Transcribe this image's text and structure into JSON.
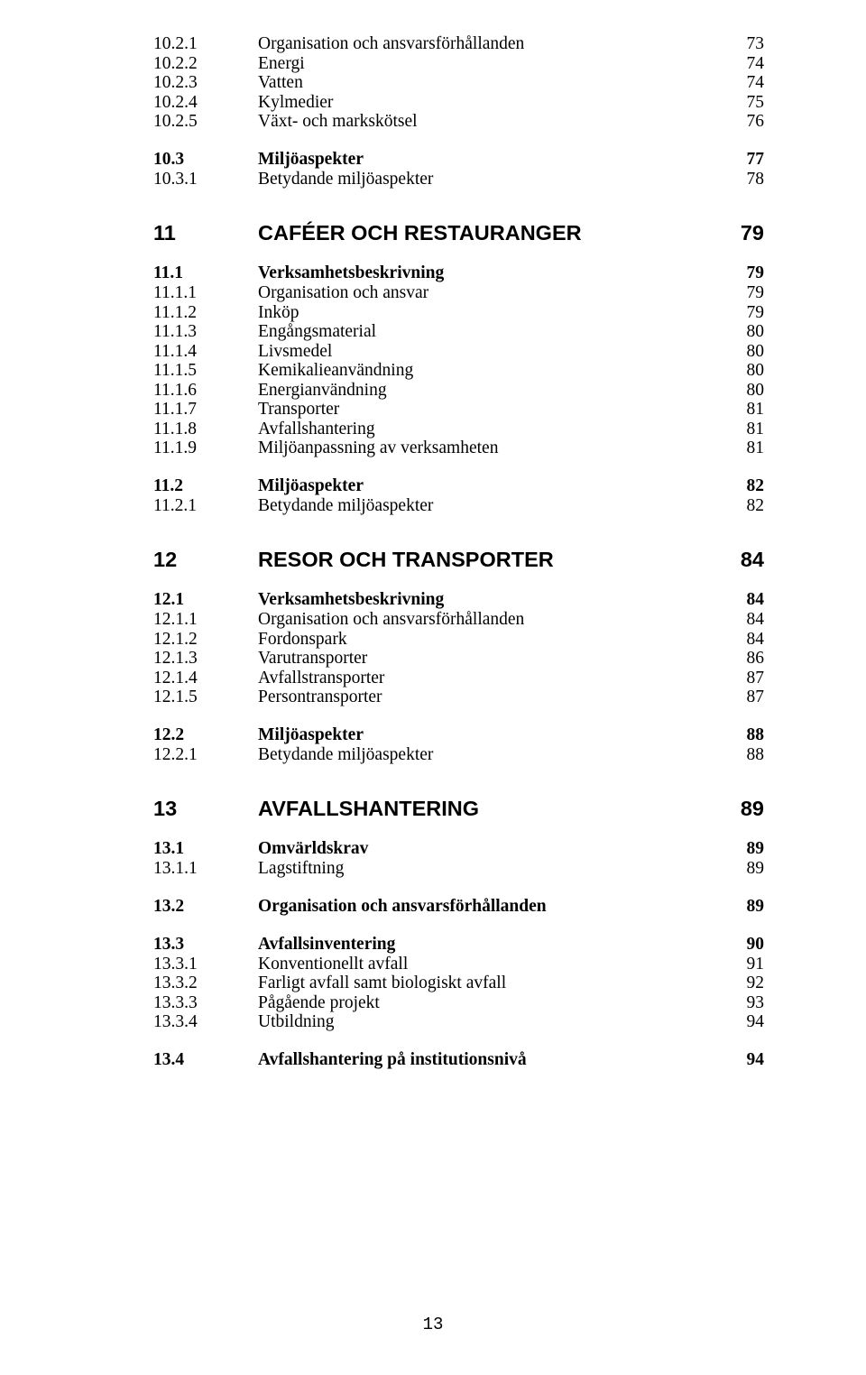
{
  "footer_page": "13",
  "items": [
    {
      "cls": "toc-entry",
      "num": "10.2.1",
      "label": "Organisation och ansvarsförhållanden",
      "pg": "73"
    },
    {
      "cls": "toc-entry",
      "num": "10.2.2",
      "label": "Energi",
      "pg": "74"
    },
    {
      "cls": "toc-entry",
      "num": "10.2.3",
      "label": "Vatten",
      "pg": "74"
    },
    {
      "cls": "toc-entry",
      "num": "10.2.4",
      "label": "Kylmedier",
      "pg": "75"
    },
    {
      "cls": "toc-entry",
      "num": "10.2.5",
      "label": "Växt- och markskötsel",
      "pg": "76"
    },
    {
      "cls": "gap-sm"
    },
    {
      "cls": "heading-2",
      "num": "10.3",
      "label": "Miljöaspekter",
      "pg": "77"
    },
    {
      "cls": "toc-entry",
      "num": "10.3.1",
      "label": "Betydande miljöaspekter",
      "pg": "78"
    },
    {
      "cls": "gap-lg"
    },
    {
      "cls": "heading-1",
      "num": "11",
      "label": "CAFÉER OCH RESTAURANGER",
      "pg": "79"
    },
    {
      "cls": "gap-sm"
    },
    {
      "cls": "heading-2",
      "num": "11.1",
      "label": "Verksamhetsbeskrivning",
      "pg": "79"
    },
    {
      "cls": "toc-entry",
      "num": "11.1.1",
      "label": "Organisation och ansvar",
      "pg": "79"
    },
    {
      "cls": "toc-entry",
      "num": "11.1.2",
      "label": "Inköp",
      "pg": "79"
    },
    {
      "cls": "toc-entry",
      "num": "11.1.3",
      "label": "Engångsmaterial",
      "pg": "80"
    },
    {
      "cls": "toc-entry",
      "num": "11.1.4",
      "label": "Livsmedel",
      "pg": "80"
    },
    {
      "cls": "toc-entry",
      "num": "11.1.5",
      "label": "Kemikalieanvändning",
      "pg": "80"
    },
    {
      "cls": "toc-entry",
      "num": "11.1.6",
      "label": "Energianvändning",
      "pg": "80"
    },
    {
      "cls": "toc-entry",
      "num": "11.1.7",
      "label": "Transporter",
      "pg": "81"
    },
    {
      "cls": "toc-entry",
      "num": "11.1.8",
      "label": "Avfallshantering",
      "pg": "81"
    },
    {
      "cls": "toc-entry",
      "num": "11.1.9",
      "label": "Miljöanpassning av verksamheten",
      "pg": "81"
    },
    {
      "cls": "gap-sm"
    },
    {
      "cls": "heading-2",
      "num": "11.2",
      "label": "Miljöaspekter",
      "pg": "82"
    },
    {
      "cls": "toc-entry",
      "num": "11.2.1",
      "label": "Betydande miljöaspekter",
      "pg": "82"
    },
    {
      "cls": "gap-lg"
    },
    {
      "cls": "heading-1",
      "num": "12",
      "label": "RESOR OCH TRANSPORTER",
      "pg": "84"
    },
    {
      "cls": "gap-sm"
    },
    {
      "cls": "heading-2",
      "num": "12.1",
      "label": "Verksamhetsbeskrivning",
      "pg": "84"
    },
    {
      "cls": "toc-entry",
      "num": "12.1.1",
      "label": "Organisation och ansvarsförhållanden",
      "pg": "84"
    },
    {
      "cls": "toc-entry",
      "num": "12.1.2",
      "label": "Fordonspark",
      "pg": "84"
    },
    {
      "cls": "toc-entry",
      "num": "12.1.3",
      "label": "Varutransporter",
      "pg": "86"
    },
    {
      "cls": "toc-entry",
      "num": "12.1.4",
      "label": "Avfallstransporter",
      "pg": "87"
    },
    {
      "cls": "toc-entry",
      "num": "12.1.5",
      "label": "Persontransporter",
      "pg": "87"
    },
    {
      "cls": "gap-sm"
    },
    {
      "cls": "heading-2",
      "num": "12.2",
      "label": "Miljöaspekter",
      "pg": "88"
    },
    {
      "cls": "toc-entry",
      "num": "12.2.1",
      "label": "Betydande miljöaspekter",
      "pg": "88"
    },
    {
      "cls": "gap-lg"
    },
    {
      "cls": "heading-1",
      "num": "13",
      "label": "AVFALLSHANTERING",
      "pg": "89"
    },
    {
      "cls": "gap-sm"
    },
    {
      "cls": "heading-2",
      "num": "13.1",
      "label": "Omvärldskrav",
      "pg": "89"
    },
    {
      "cls": "toc-entry",
      "num": "13.1.1",
      "label": "Lagstiftning",
      "pg": "89"
    },
    {
      "cls": "gap-sm"
    },
    {
      "cls": "heading-2",
      "num": "13.2",
      "label": "Organisation och ansvarsförhållanden",
      "pg": "89"
    },
    {
      "cls": "gap-sm"
    },
    {
      "cls": "heading-2",
      "num": "13.3",
      "label": "Avfallsinventering",
      "pg": "90"
    },
    {
      "cls": "toc-entry",
      "num": "13.3.1",
      "label": "Konventionellt avfall",
      "pg": "91"
    },
    {
      "cls": "toc-entry",
      "num": "13.3.2",
      "label": "Farligt avfall samt biologiskt avfall",
      "pg": "92"
    },
    {
      "cls": "toc-entry",
      "num": "13.3.3",
      "label": "Pågående projekt",
      "pg": "93"
    },
    {
      "cls": "toc-entry",
      "num": "13.3.4",
      "label": "Utbildning",
      "pg": "94"
    },
    {
      "cls": "gap-sm"
    },
    {
      "cls": "heading-2",
      "num": "13.4",
      "label": "Avfallshantering på institutionsnivå",
      "pg": "94"
    }
  ]
}
